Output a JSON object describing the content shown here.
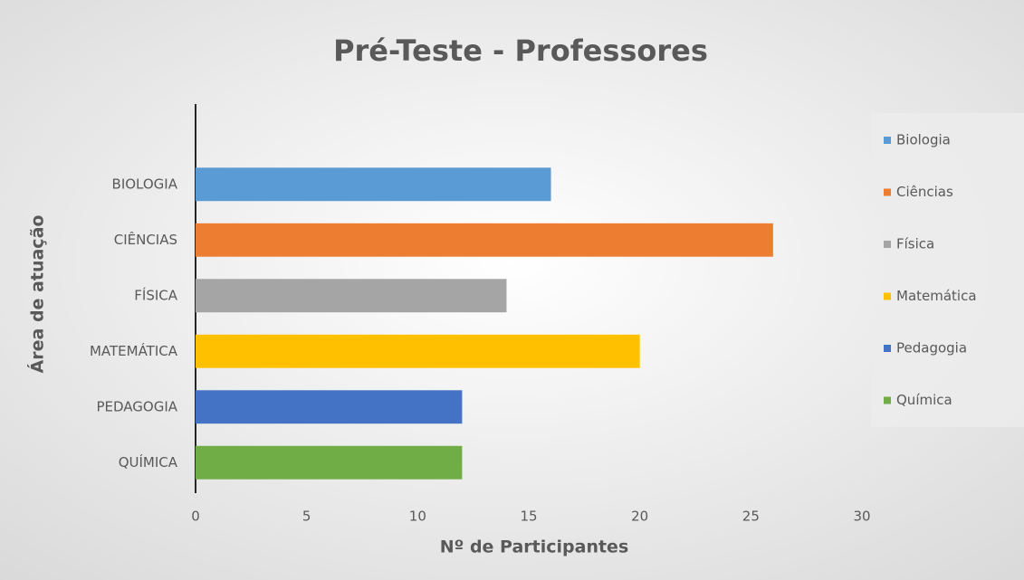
{
  "chart_data": {
    "type": "barh",
    "title": "Pré-Teste - Professores",
    "xlabel": "Nº de Participantes",
    "ylabel": "Área de atuação",
    "categories": [
      "BIOLOGIA",
      "CIÊNCIAS",
      "FÍSICA",
      "MATEMÁTICA",
      "PEDAGOGIA",
      "QUÍMICA"
    ],
    "values": [
      16,
      26,
      14,
      20,
      12,
      12
    ],
    "colors": [
      "#5b9bd5",
      "#ed7d31",
      "#a5a5a5",
      "#ffc000",
      "#4472c4",
      "#70ad47"
    ],
    "legend": [
      "Biologia",
      "Ciências",
      "Física",
      "Matemática",
      "Pedagogia",
      "Química"
    ],
    "legend_position": "right",
    "xlim": [
      0,
      30
    ],
    "xticks": [
      0,
      5,
      10,
      15,
      20,
      25,
      30
    ],
    "grid": false
  }
}
